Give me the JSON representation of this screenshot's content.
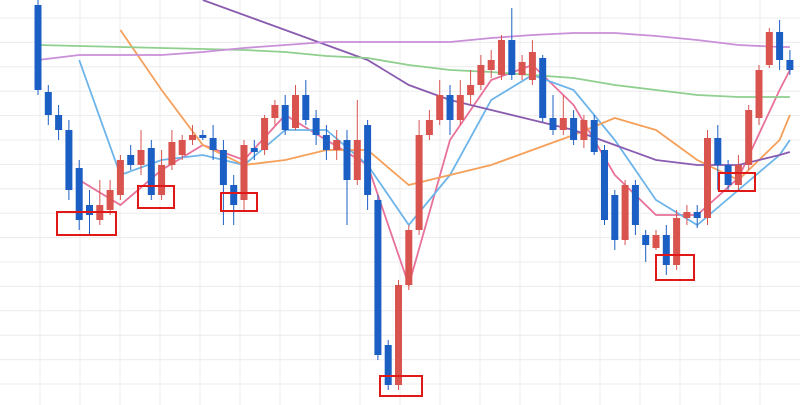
{
  "chart_data": {
    "type": "candlestick",
    "ylim": [
      0,
      405
    ],
    "up_color": "#d9534f",
    "down_color": "#1c5fc4",
    "ohlc": [
      [
        400,
        405,
        310,
        315
      ],
      [
        313,
        320,
        280,
        290
      ],
      [
        290,
        300,
        265,
        275
      ],
      [
        275,
        285,
        205,
        215
      ],
      [
        237,
        245,
        175,
        185
      ],
      [
        200,
        215,
        170,
        190
      ],
      [
        185,
        225,
        180,
        200
      ],
      [
        195,
        225,
        190,
        215
      ],
      [
        210,
        250,
        205,
        245
      ],
      [
        250,
        260,
        235,
        240
      ],
      [
        240,
        275,
        230,
        255
      ],
      [
        257,
        265,
        205,
        210
      ],
      [
        210,
        255,
        205,
        240
      ],
      [
        240,
        275,
        235,
        263
      ],
      [
        250,
        270,
        245,
        265
      ],
      [
        265,
        280,
        260,
        270
      ],
      [
        270,
        275,
        265,
        267
      ],
      [
        267,
        280,
        245,
        255
      ],
      [
        255,
        265,
        180,
        220
      ],
      [
        220,
        230,
        180,
        200
      ],
      [
        205,
        265,
        195,
        260
      ],
      [
        257,
        265,
        245,
        253
      ],
      [
        255,
        290,
        250,
        287
      ],
      [
        287,
        305,
        280,
        300
      ],
      [
        300,
        310,
        270,
        275
      ],
      [
        277,
        320,
        275,
        310
      ],
      [
        310,
        325,
        280,
        285
      ],
      [
        287,
        295,
        260,
        270
      ],
      [
        270,
        280,
        245,
        255
      ],
      [
        255,
        275,
        245,
        265
      ],
      [
        265,
        275,
        180,
        225
      ],
      [
        225,
        305,
        220,
        265
      ],
      [
        280,
        285,
        195,
        210
      ],
      [
        205,
        210,
        45,
        50
      ],
      [
        60,
        65,
        15,
        20
      ],
      [
        20,
        125,
        15,
        120
      ],
      [
        120,
        180,
        115,
        175
      ],
      [
        175,
        285,
        170,
        270
      ],
      [
        270,
        295,
        265,
        285
      ],
      [
        285,
        325,
        280,
        310
      ],
      [
        310,
        320,
        270,
        285
      ],
      [
        285,
        325,
        280,
        310
      ],
      [
        310,
        335,
        300,
        320
      ],
      [
        320,
        350,
        315,
        340
      ],
      [
        335,
        355,
        327,
        345
      ],
      [
        330,
        370,
        325,
        365
      ],
      [
        365,
        397,
        325,
        330
      ],
      [
        330,
        350,
        325,
        343
      ],
      [
        325,
        365,
        320,
        353
      ],
      [
        347,
        350,
        283,
        287
      ],
      [
        287,
        310,
        270,
        275
      ],
      [
        275,
        310,
        270,
        287
      ],
      [
        287,
        295,
        260,
        265
      ],
      [
        265,
        290,
        257,
        285
      ],
      [
        285,
        290,
        250,
        253
      ],
      [
        255,
        260,
        180,
        185
      ],
      [
        210,
        215,
        155,
        165
      ],
      [
        165,
        225,
        160,
        220
      ],
      [
        220,
        225,
        170,
        180
      ],
      [
        170,
        175,
        143,
        160
      ],
      [
        157,
        175,
        155,
        170
      ],
      [
        170,
        180,
        130,
        140
      ],
      [
        140,
        195,
        135,
        187
      ],
      [
        187,
        200,
        180,
        193
      ],
      [
        193,
        200,
        177,
        187
      ],
      [
        187,
        275,
        180,
        267
      ],
      [
        267,
        280,
        215,
        240
      ],
      [
        240,
        245,
        215,
        220
      ],
      [
        220,
        250,
        215,
        240
      ],
      [
        240,
        300,
        235,
        295
      ],
      [
        287,
        340,
        280,
        335
      ],
      [
        340,
        377,
        337,
        373
      ],
      [
        373,
        385,
        335,
        345
      ],
      [
        345,
        355,
        330,
        335
      ]
    ],
    "series": [
      {
        "color": "#e8709a",
        "x": [
          0,
          4,
          8,
          12,
          16,
          20,
          24,
          28,
          32,
          36,
          40,
          44,
          48,
          52,
          56,
          60,
          64,
          68,
          72,
          73
        ],
        "values": [
          null,
          225,
          200,
          235,
          260,
          245,
          290,
          265,
          240,
          120,
          265,
          325,
          340,
          300,
          230,
          190,
          190,
          227,
          315,
          335
        ]
      },
      {
        "color": "#6cb4ea",
        "x": [
          0,
          4,
          8,
          12,
          16,
          20,
          24,
          28,
          32,
          36,
          40,
          44,
          48,
          52,
          56,
          60,
          64,
          68,
          72,
          73
        ],
        "values": [
          null,
          345,
          230,
          245,
          250,
          240,
          275,
          275,
          240,
          180,
          230,
          305,
          330,
          315,
          265,
          205,
          180,
          215,
          250,
          265
        ]
      },
      {
        "color": "#f5a05a",
        "x": [
          0,
          4,
          8,
          12,
          16,
          20,
          24,
          28,
          32,
          36,
          40,
          44,
          48,
          52,
          56,
          60,
          64,
          68,
          72,
          73
        ],
        "values": [
          null,
          null,
          375,
          315,
          260,
          240,
          245,
          255,
          255,
          220,
          230,
          240,
          255,
          270,
          287,
          275,
          245,
          225,
          265,
          290
        ]
      },
      {
        "color": "#8a5cb0",
        "x": [
          0,
          4,
          8,
          12,
          16,
          20,
          24,
          28,
          32,
          36,
          40,
          44,
          48,
          52,
          56,
          60,
          64,
          68,
          72,
          73
        ],
        "values": [
          null,
          null,
          null,
          null,
          405,
          390,
          375,
          360,
          345,
          320,
          305,
          295,
          285,
          275,
          260,
          245,
          240,
          240,
          250,
          253
        ]
      },
      {
        "color": "#8fcf8f",
        "x": [
          0,
          4,
          8,
          12,
          16,
          20,
          24,
          28,
          32,
          36,
          40,
          44,
          48,
          52,
          56,
          60,
          64,
          68,
          72,
          73
        ],
        "values": [
          360,
          359,
          358,
          357,
          356,
          355,
          353,
          349,
          347,
          340,
          335,
          333,
          330,
          327,
          320,
          315,
          310,
          308,
          308,
          308
        ]
      },
      {
        "color": "#c98fd8",
        "x": [
          0,
          4,
          8,
          12,
          16,
          20,
          24,
          28,
          32,
          36,
          40,
          44,
          48,
          52,
          56,
          60,
          64,
          68,
          72,
          73
        ],
        "values": [
          345,
          350,
          350,
          350,
          353,
          357,
          360,
          363,
          363,
          363,
          363,
          367,
          370,
          372,
          372,
          369,
          365,
          360,
          358,
          358
        ]
      }
    ]
  }
}
